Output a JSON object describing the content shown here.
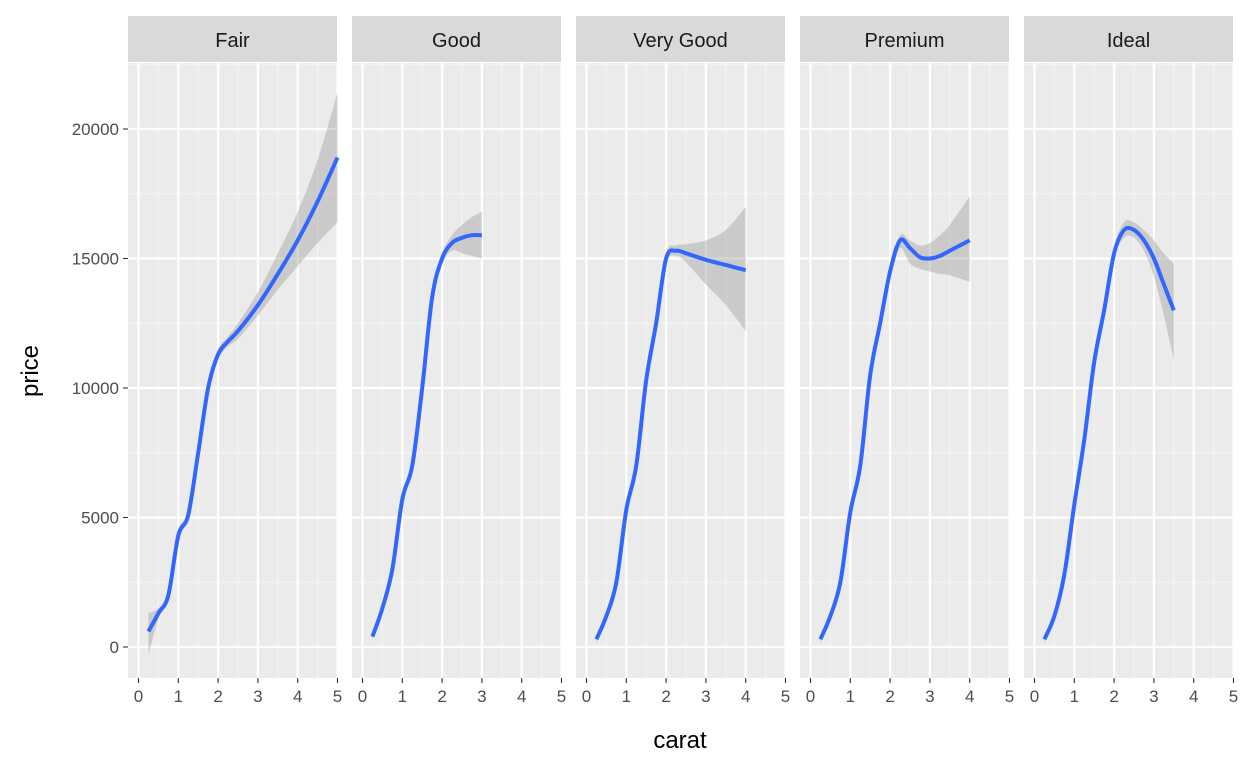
{
  "chart_data": {
    "type": "line",
    "xlabel": "carat",
    "ylabel": "price",
    "xlim": [
      0,
      5
    ],
    "ylim": [
      -1300,
      22500
    ],
    "x_ticks": [
      "0",
      "1",
      "2",
      "3",
      "4",
      "5"
    ],
    "y_ticks": [
      "0",
      "5000",
      "10000",
      "15000",
      "20000"
    ],
    "grid": true,
    "facets": [
      {
        "name": "Fair",
        "x": [
          0.25,
          0.5,
          0.75,
          1.0,
          1.25,
          1.5,
          1.75,
          2.0,
          2.25,
          2.5,
          3.0,
          3.5,
          4.0,
          4.5,
          5.0
        ],
        "y": [
          600,
          1300,
          2000,
          4300,
          5100,
          7500,
          10000,
          11300,
          11800,
          12200,
          13200,
          14400,
          15700,
          17200,
          18900
        ],
        "lower": [
          -300,
          1100,
          1900,
          4100,
          5000,
          7300,
          9800,
          11100,
          11600,
          11900,
          12800,
          13800,
          14700,
          15600,
          16400
        ],
        "upper": [
          1300,
          1500,
          2100,
          4500,
          5200,
          7700,
          10200,
          11500,
          12000,
          12500,
          13700,
          15200,
          16800,
          18800,
          21400
        ]
      },
      {
        "name": "Good",
        "x": [
          0.25,
          0.5,
          0.75,
          1.0,
          1.25,
          1.5,
          1.75,
          2.0,
          2.25,
          2.5,
          2.75,
          3.0
        ],
        "y": [
          400,
          1500,
          3000,
          5700,
          7000,
          10000,
          13500,
          15000,
          15600,
          15800,
          15900,
          15900
        ],
        "lower": [
          250,
          1400,
          2900,
          5600,
          6900,
          9900,
          13400,
          14800,
          15300,
          15200,
          15100,
          15000
        ],
        "upper": [
          550,
          1600,
          3100,
          5800,
          7100,
          10100,
          13600,
          15200,
          15900,
          16300,
          16600,
          16800
        ]
      },
      {
        "name": "Very Good",
        "x": [
          0.25,
          0.5,
          0.75,
          1.0,
          1.25,
          1.5,
          1.75,
          2.0,
          2.25,
          2.5,
          3.0,
          3.5,
          4.0
        ],
        "y": [
          300,
          1200,
          2500,
          5300,
          7000,
          10300,
          12500,
          15000,
          15300,
          15200,
          14950,
          14750,
          14550
        ],
        "lower": [
          150,
          1100,
          2400,
          5200,
          6900,
          10200,
          12400,
          14800,
          15100,
          14850,
          14000,
          13200,
          12200
        ],
        "upper": [
          450,
          1300,
          2600,
          5400,
          7100,
          10400,
          12600,
          15200,
          15500,
          15550,
          15700,
          16100,
          17000
        ]
      },
      {
        "name": "Premium",
        "x": [
          0.25,
          0.5,
          0.75,
          1.0,
          1.25,
          1.5,
          1.75,
          2.0,
          2.25,
          2.5,
          2.75,
          3.0,
          3.25,
          3.5,
          4.0
        ],
        "y": [
          300,
          1200,
          2500,
          5200,
          7000,
          10500,
          12500,
          14500,
          15700,
          15400,
          15050,
          15000,
          15100,
          15300,
          15700
        ],
        "lower": [
          150,
          1100,
          2400,
          5100,
          6900,
          10400,
          12400,
          14300,
          15400,
          14800,
          14600,
          14500,
          14400,
          14350,
          14100
        ],
        "upper": [
          450,
          1300,
          2600,
          5300,
          7100,
          10600,
          12600,
          14700,
          15900,
          15700,
          15500,
          15600,
          15900,
          16300,
          17400
        ]
      },
      {
        "name": "Ideal",
        "x": [
          0.25,
          0.5,
          0.75,
          1.0,
          1.25,
          1.5,
          1.75,
          2.0,
          2.25,
          2.5,
          2.75,
          3.0,
          3.25,
          3.5
        ],
        "y": [
          300,
          1200,
          2800,
          5500,
          8000,
          11000,
          13000,
          15200,
          16100,
          16100,
          15700,
          15000,
          14000,
          13000
        ],
        "lower": [
          150,
          1100,
          2700,
          5400,
          7900,
          10900,
          12900,
          15000,
          15800,
          15800,
          15300,
          14300,
          12800,
          11100
        ],
        "upper": [
          450,
          1300,
          2900,
          5600,
          8100,
          11100,
          13100,
          15400,
          16400,
          16400,
          16100,
          15700,
          15200,
          14800
        ]
      }
    ]
  },
  "colors": {
    "line": "#3366FF",
    "ribbon": "#999999",
    "panel_bg": "#EBEBEB",
    "strip_bg": "#D9D9D9",
    "grid_major": "#FFFFFF",
    "grid_minor": "#F5F5F5",
    "axis_text": "#4D4D4D"
  }
}
